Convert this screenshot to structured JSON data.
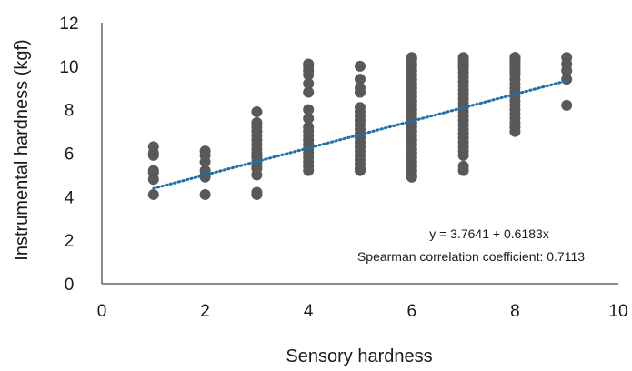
{
  "chart_data": {
    "type": "scatter",
    "xlabel": "Sensory hardness",
    "ylabel": "Instrumental hardness (kgf)",
    "xlim": [
      0,
      10
    ],
    "ylim": [
      0,
      12
    ],
    "xticks": [
      "0",
      "2",
      "4",
      "6",
      "8",
      "10"
    ],
    "yticks": [
      "0",
      "2",
      "4",
      "6",
      "8",
      "10",
      "12"
    ],
    "grid": false,
    "point_color": "#595959",
    "trend_color": "#1f6fa8",
    "trendline": {
      "intercept": 3.7641,
      "slope": 0.6183,
      "x_range": [
        1,
        9
      ],
      "style": "dotted"
    },
    "annotations": {
      "equation": "y = 3.7641 + 0.6183x",
      "correlation": "Spearman correlation coefficient: 0.7113"
    },
    "points": {
      "x": [
        1,
        1,
        1,
        1,
        1,
        1,
        1,
        2,
        2,
        2,
        2,
        2,
        2,
        2,
        3,
        3,
        3,
        3,
        3,
        3,
        3,
        3,
        3,
        3,
        3,
        3,
        3,
        3,
        3,
        3,
        3,
        4,
        4,
        4,
        4,
        4,
        4,
        4,
        4,
        4,
        4,
        4,
        4,
        4,
        4,
        4,
        4,
        4,
        4,
        4,
        5,
        5,
        5,
        5,
        5,
        5,
        5,
        5,
        5,
        5,
        5,
        5,
        5,
        5,
        5,
        5,
        5,
        5,
        5,
        5,
        6,
        6,
        6,
        6,
        6,
        6,
        6,
        6,
        6,
        6,
        6,
        6,
        6,
        6,
        6,
        6,
        6,
        6,
        6,
        6,
        6,
        6,
        6,
        6,
        6,
        6,
        6,
        6,
        6,
        6,
        7,
        7,
        7,
        7,
        7,
        7,
        7,
        7,
        7,
        7,
        7,
        7,
        7,
        7,
        7,
        7,
        7,
        7,
        7,
        7,
        7,
        7,
        7,
        7,
        7,
        7,
        7,
        7,
        8,
        8,
        8,
        8,
        8,
        8,
        8,
        8,
        8,
        8,
        8,
        8,
        8,
        8,
        8,
        8,
        8,
        8,
        8,
        8,
        8,
        8,
        8,
        8,
        8,
        9,
        9,
        9,
        9,
        9
      ],
      "y": [
        4.1,
        4.8,
        5.1,
        5.2,
        5.9,
        6.0,
        6.3,
        4.1,
        4.9,
        5.0,
        5.2,
        5.6,
        5.9,
        6.1,
        4.1,
        4.2,
        5.0,
        5.3,
        5.4,
        5.6,
        5.8,
        5.9,
        6.0,
        6.2,
        6.4,
        6.6,
        6.8,
        7.0,
        7.2,
        7.4,
        7.9,
        5.2,
        5.4,
        5.6,
        5.8,
        6.0,
        6.2,
        6.4,
        6.6,
        6.8,
        7.0,
        7.2,
        7.6,
        8.0,
        8.8,
        9.2,
        9.6,
        9.8,
        10.0,
        10.1,
        5.2,
        5.3,
        5.5,
        5.7,
        5.9,
        6.1,
        6.3,
        6.5,
        6.7,
        6.9,
        7.1,
        7.3,
        7.5,
        7.7,
        7.9,
        8.1,
        8.8,
        9.0,
        9.4,
        10.0,
        4.9,
        5.0,
        5.2,
        5.4,
        5.6,
        5.8,
        6.0,
        6.2,
        6.4,
        6.6,
        6.8,
        7.0,
        7.2,
        7.4,
        7.6,
        7.8,
        8.0,
        8.2,
        8.4,
        8.6,
        8.8,
        9.0,
        9.2,
        9.4,
        9.6,
        9.8,
        10.0,
        10.1,
        10.3,
        10.4,
        5.2,
        5.4,
        5.9,
        6.1,
        6.3,
        6.5,
        6.7,
        6.9,
        7.1,
        7.3,
        7.5,
        7.7,
        7.9,
        8.1,
        8.3,
        8.5,
        8.7,
        8.9,
        9.1,
        9.3,
        9.5,
        9.7,
        9.9,
        10.0,
        10.1,
        10.2,
        10.3,
        10.4,
        7.0,
        7.2,
        7.4,
        7.6,
        7.8,
        8.0,
        8.2,
        8.4,
        8.6,
        8.8,
        9.0,
        9.2,
        9.4,
        9.6,
        9.7,
        9.8,
        9.9,
        10.0,
        10.1,
        10.2,
        10.3,
        10.3,
        10.4,
        10.4,
        10.4,
        8.2,
        9.4,
        9.8,
        10.1,
        10.4
      ]
    }
  }
}
